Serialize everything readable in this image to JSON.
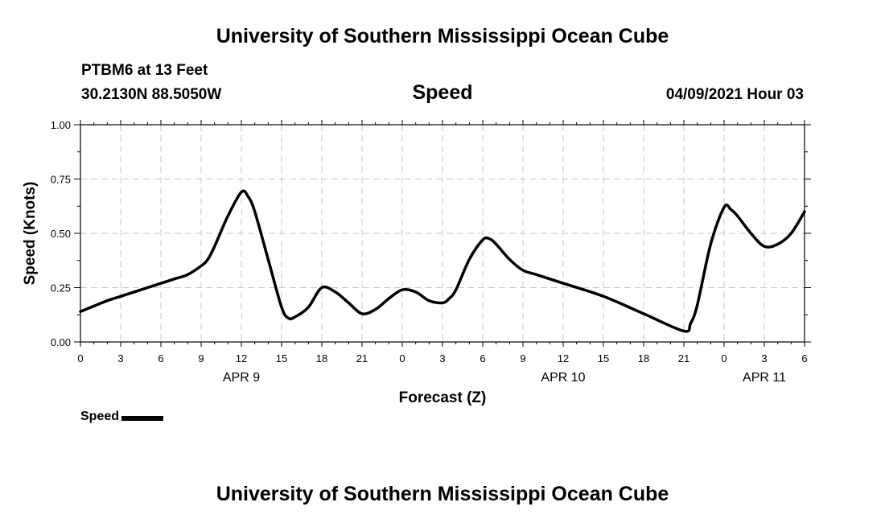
{
  "header": {
    "title_top": "University of Southern Mississippi Ocean Cube",
    "station": "PTBM6 at 13 Feet",
    "coords": "30.2130N  88.5050W",
    "chart_title": "Speed",
    "forecast_date": "04/09/2021 Hour 03",
    "title_bottom": "University of Southern Mississippi Ocean Cube"
  },
  "legend": {
    "label": "Speed"
  },
  "chart_data": {
    "type": "line",
    "title": "Speed",
    "xlabel": "Forecast (Z)",
    "ylabel": "Speed (Knots)",
    "xlim": [
      0,
      54
    ],
    "ylim": [
      0,
      1.0
    ],
    "x_ticks": [
      0,
      3,
      6,
      9,
      12,
      15,
      18,
      21,
      24,
      27,
      30,
      33,
      36,
      39,
      42,
      45,
      48,
      51,
      54
    ],
    "x_tick_labels": [
      "0",
      "3",
      "6",
      "9",
      "12",
      "15",
      "18",
      "21",
      "0",
      "3",
      "6",
      "9",
      "12",
      "15",
      "18",
      "21",
      "0",
      "3",
      "6"
    ],
    "y_ticks": [
      0,
      0.25,
      0.5,
      0.75,
      1.0
    ],
    "y_tick_labels": [
      "0.00",
      "0.25",
      "0.50",
      "0.75",
      "1.00"
    ],
    "date_labels": [
      {
        "x": 12,
        "label": "APR 9"
      },
      {
        "x": 36,
        "label": "APR 10"
      },
      {
        "x": 51,
        "label": "APR 11"
      }
    ],
    "grid": true,
    "legend_position": "bottom-left",
    "series": [
      {
        "name": "Speed",
        "color": "#000000",
        "x": [
          0,
          1,
          2,
          3,
          4,
          5,
          6,
          7,
          8,
          9,
          9.5,
          10,
          11,
          12,
          12.5,
          13,
          14,
          15,
          15.5,
          16,
          17,
          18,
          19,
          20,
          21,
          22,
          23,
          24,
          25,
          26,
          27,
          27.5,
          28,
          29,
          30,
          30.5,
          31,
          32,
          33,
          34,
          36,
          39,
          42,
          45,
          45.5,
          46,
          47,
          48,
          48.5,
          49,
          50,
          51,
          52,
          53,
          54
        ],
        "values": [
          0.14,
          0.165,
          0.19,
          0.21,
          0.23,
          0.25,
          0.27,
          0.29,
          0.31,
          0.35,
          0.38,
          0.44,
          0.58,
          0.69,
          0.67,
          0.6,
          0.38,
          0.16,
          0.11,
          0.115,
          0.16,
          0.25,
          0.23,
          0.18,
          0.13,
          0.15,
          0.2,
          0.24,
          0.23,
          0.19,
          0.18,
          0.2,
          0.24,
          0.38,
          0.47,
          0.475,
          0.45,
          0.38,
          0.33,
          0.31,
          0.27,
          0.21,
          0.13,
          0.05,
          0.085,
          0.17,
          0.45,
          0.62,
          0.61,
          0.58,
          0.5,
          0.44,
          0.45,
          0.5,
          0.6
        ]
      }
    ]
  }
}
